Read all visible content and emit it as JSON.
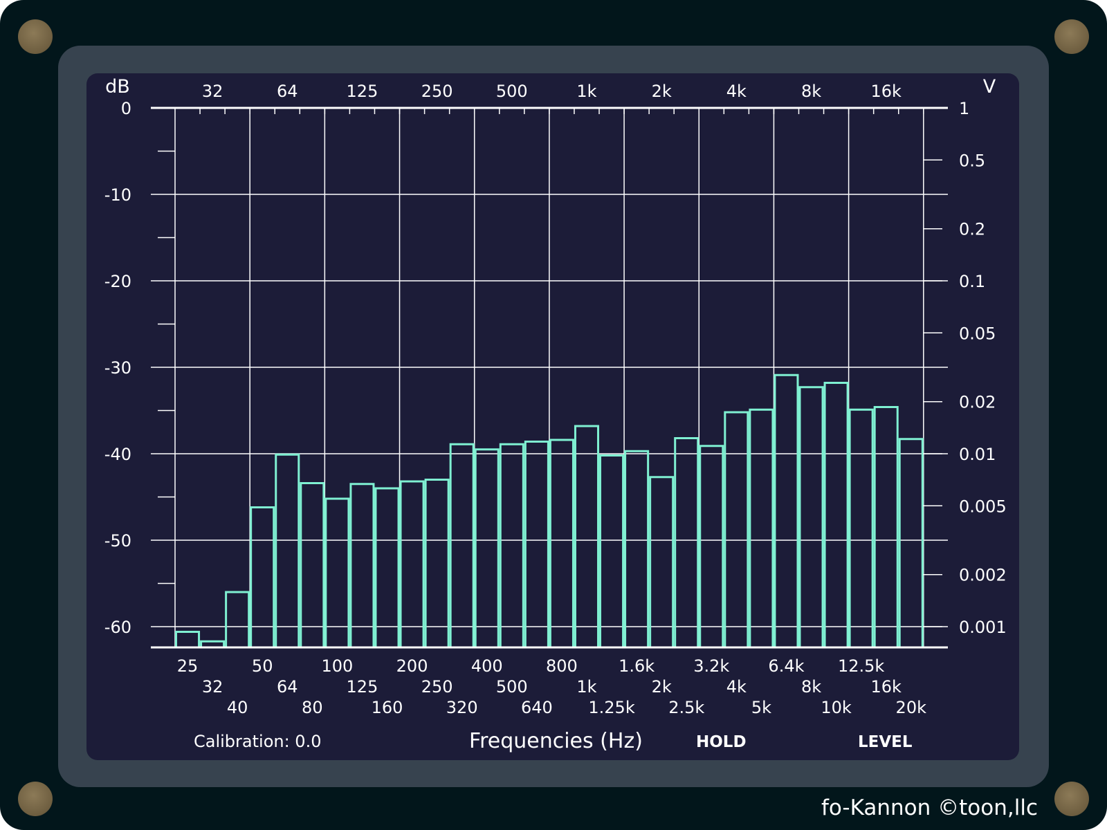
{
  "app": {
    "calibration_label": "Calibration: 0.0",
    "x_axis_title": "Frequencies (Hz)",
    "hold_label": "HOLD",
    "level_label": "LEVEL",
    "brand": "fo-Kannon  ©toon,llc"
  },
  "colors": {
    "device": "#02161b",
    "bezel": "#37434f",
    "screen": "#1c1c38",
    "grid": "#ffffff",
    "bars": "#7ff0d2"
  },
  "chart_data": {
    "type": "bar",
    "title": "",
    "xlabel": "Frequencies (Hz)",
    "left_axis_label": "dB",
    "right_axis_label": "V",
    "ylim": [
      -62.4,
      0
    ],
    "left_ticks": [
      "0",
      "-10",
      "-20",
      "-30",
      "-40",
      "-50",
      "-60"
    ],
    "right_ticks": [
      "1",
      "0.5",
      "0.2",
      "0.1",
      "0.05",
      "0.02",
      "0.01",
      "0.005",
      "0.002",
      "0.001"
    ],
    "top_ticks": [
      "32",
      "64",
      "125",
      "250",
      "500",
      "1k",
      "2k",
      "4k",
      "8k",
      "16k"
    ],
    "categories": [
      "25",
      "32",
      "40",
      "50",
      "64",
      "80",
      "100",
      "125",
      "160",
      "200",
      "250",
      "320",
      "400",
      "500",
      "640",
      "800",
      "1k",
      "1.25k",
      "1.6k",
      "2k",
      "2.5k",
      "3.2k",
      "4k",
      "5k",
      "6.4k",
      "8k",
      "10k",
      "12.5k",
      "16k",
      "20k"
    ],
    "values": [
      -60.6,
      -61.7,
      -56.0,
      -46.2,
      -40.1,
      -43.4,
      -45.2,
      -43.5,
      -44.0,
      -43.2,
      -43.0,
      -38.9,
      -39.5,
      -38.9,
      -38.6,
      -38.4,
      -36.8,
      -40.2,
      -39.7,
      -42.7,
      -38.2,
      -39.1,
      -35.2,
      -34.9,
      -30.9,
      -32.3,
      -31.8,
      -34.9,
      -34.6,
      -38.3
    ]
  }
}
